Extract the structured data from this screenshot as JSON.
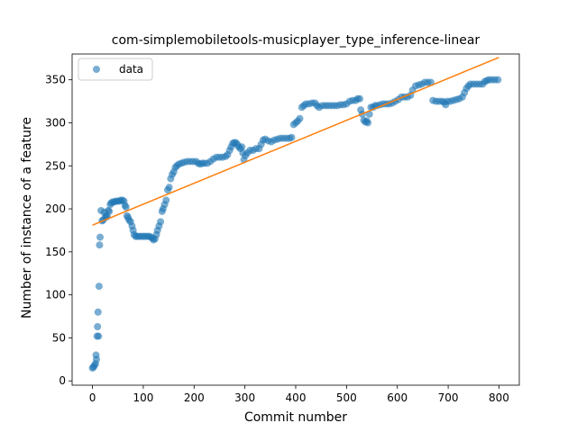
{
  "chart_data": {
    "type": "scatter",
    "title": "com-simplemobiletools-musicplayer_type_inference-linear",
    "xlabel": "Commit number",
    "ylabel": "Number of instance of a feature",
    "xlim": [
      -40,
      840
    ],
    "ylim": [
      -5,
      380
    ],
    "xticks": [
      0,
      100,
      200,
      300,
      400,
      500,
      600,
      700,
      800
    ],
    "yticks": [
      0,
      50,
      100,
      150,
      200,
      250,
      300,
      350
    ],
    "legend": {
      "position": "top-left",
      "entries": [
        "data"
      ]
    },
    "series": [
      {
        "name": "data",
        "kind": "scatter",
        "color": "#1f77b4",
        "points": [
          [
            0,
            15
          ],
          [
            2,
            16
          ],
          [
            4,
            18
          ],
          [
            6,
            20
          ],
          [
            7,
            30
          ],
          [
            8,
            25
          ],
          [
            9,
            52
          ],
          [
            10,
            63
          ],
          [
            11,
            80
          ],
          [
            12,
            52
          ],
          [
            13,
            110
          ],
          [
            14,
            158
          ],
          [
            15,
            167
          ],
          [
            17,
            198
          ],
          [
            19,
            186
          ],
          [
            21,
            187
          ],
          [
            23,
            196
          ],
          [
            25,
            190
          ],
          [
            27,
            192
          ],
          [
            29,
            191
          ],
          [
            31,
            198
          ],
          [
            33,
            197
          ],
          [
            35,
            205
          ],
          [
            37,
            207
          ],
          [
            40,
            208
          ],
          [
            43,
            208
          ],
          [
            46,
            209
          ],
          [
            50,
            209
          ],
          [
            53,
            209
          ],
          [
            56,
            210
          ],
          [
            59,
            210
          ],
          [
            62,
            209
          ],
          [
            64,
            204
          ],
          [
            66,
            202
          ],
          [
            68,
            192
          ],
          [
            70,
            190
          ],
          [
            72,
            187
          ],
          [
            75,
            185
          ],
          [
            78,
            180
          ],
          [
            80,
            175
          ],
          [
            82,
            170
          ],
          [
            85,
            168
          ],
          [
            88,
            168
          ],
          [
            92,
            168
          ],
          [
            96,
            168
          ],
          [
            100,
            168
          ],
          [
            104,
            168
          ],
          [
            108,
            168
          ],
          [
            112,
            168
          ],
          [
            115,
            167
          ],
          [
            118,
            166
          ],
          [
            120,
            164
          ],
          [
            123,
            165
          ],
          [
            126,
            170
          ],
          [
            128,
            175
          ],
          [
            131,
            180
          ],
          [
            134,
            185
          ],
          [
            137,
            197
          ],
          [
            139,
            200
          ],
          [
            142,
            205
          ],
          [
            145,
            210
          ],
          [
            148,
            222
          ],
          [
            151,
            225
          ],
          [
            154,
            235
          ],
          [
            157,
            240
          ],
          [
            160,
            243
          ],
          [
            163,
            248
          ],
          [
            166,
            250
          ],
          [
            170,
            252
          ],
          [
            175,
            253
          ],
          [
            180,
            254
          ],
          [
            186,
            255
          ],
          [
            192,
            255
          ],
          [
            198,
            255
          ],
          [
            204,
            255
          ],
          [
            208,
            253
          ],
          [
            212,
            252
          ],
          [
            216,
            253
          ],
          [
            220,
            253
          ],
          [
            226,
            253
          ],
          [
            232,
            255
          ],
          [
            238,
            258
          ],
          [
            244,
            260
          ],
          [
            250,
            260
          ],
          [
            256,
            260
          ],
          [
            262,
            261
          ],
          [
            266,
            263
          ],
          [
            270,
            268
          ],
          [
            273,
            272
          ],
          [
            276,
            276
          ],
          [
            279,
            277
          ],
          [
            282,
            277
          ],
          [
            285,
            275
          ],
          [
            288,
            272
          ],
          [
            291,
            270
          ],
          [
            294,
            272
          ],
          [
            296,
            265
          ],
          [
            298,
            257
          ],
          [
            301,
            262
          ],
          [
            305,
            265
          ],
          [
            310,
            268
          ],
          [
            316,
            268
          ],
          [
            322,
            270
          ],
          [
            328,
            270
          ],
          [
            332,
            275
          ],
          [
            336,
            280
          ],
          [
            340,
            281
          ],
          [
            346,
            279
          ],
          [
            352,
            278
          ],
          [
            358,
            280
          ],
          [
            364,
            281
          ],
          [
            370,
            282
          ],
          [
            376,
            282
          ],
          [
            382,
            282
          ],
          [
            388,
            282
          ],
          [
            392,
            283
          ],
          [
            396,
            298
          ],
          [
            400,
            300
          ],
          [
            404,
            302
          ],
          [
            408,
            305
          ],
          [
            412,
            318
          ],
          [
            416,
            320
          ],
          [
            420,
            322
          ],
          [
            426,
            322
          ],
          [
            432,
            323
          ],
          [
            438,
            323
          ],
          [
            442,
            320
          ],
          [
            446,
            318
          ],
          [
            452,
            320
          ],
          [
            458,
            320
          ],
          [
            464,
            320
          ],
          [
            470,
            320
          ],
          [
            476,
            320
          ],
          [
            482,
            320
          ],
          [
            488,
            321
          ],
          [
            494,
            321
          ],
          [
            500,
            322
          ],
          [
            506,
            325
          ],
          [
            512,
            326
          ],
          [
            518,
            326
          ],
          [
            522,
            328
          ],
          [
            526,
            328
          ],
          [
            528,
            315
          ],
          [
            531,
            310
          ],
          [
            534,
            303
          ],
          [
            537,
            301
          ],
          [
            540,
            302
          ],
          [
            542,
            300
          ],
          [
            545,
            310
          ],
          [
            548,
            318
          ],
          [
            552,
            318
          ],
          [
            556,
            320
          ],
          [
            560,
            320
          ],
          [
            566,
            321
          ],
          [
            572,
            322
          ],
          [
            578,
            322
          ],
          [
            584,
            322
          ],
          [
            590,
            323
          ],
          [
            596,
            325
          ],
          [
            602,
            327
          ],
          [
            608,
            330
          ],
          [
            614,
            330
          ],
          [
            620,
            330
          ],
          [
            626,
            332
          ],
          [
            630,
            338
          ],
          [
            636,
            343
          ],
          [
            642,
            344
          ],
          [
            648,
            345
          ],
          [
            654,
            347
          ],
          [
            660,
            347
          ],
          [
            666,
            347
          ],
          [
            670,
            326
          ],
          [
            676,
            325
          ],
          [
            682,
            325
          ],
          [
            688,
            325
          ],
          [
            692,
            324
          ],
          [
            695,
            321
          ],
          [
            698,
            325
          ],
          [
            704,
            325
          ],
          [
            710,
            326
          ],
          [
            716,
            327
          ],
          [
            722,
            328
          ],
          [
            728,
            330
          ],
          [
            732,
            335
          ],
          [
            736,
            340
          ],
          [
            740,
            343
          ],
          [
            744,
            345
          ],
          [
            750,
            345
          ],
          [
            756,
            345
          ],
          [
            762,
            345
          ],
          [
            768,
            345
          ],
          [
            772,
            348
          ],
          [
            776,
            349
          ],
          [
            780,
            350
          ],
          [
            786,
            350
          ],
          [
            792,
            350
          ],
          [
            798,
            350
          ]
        ]
      },
      {
        "kind": "line",
        "color": "#ff7f0e",
        "x": [
          0,
          800
        ],
        "y": [
          181,
          376
        ]
      }
    ]
  }
}
